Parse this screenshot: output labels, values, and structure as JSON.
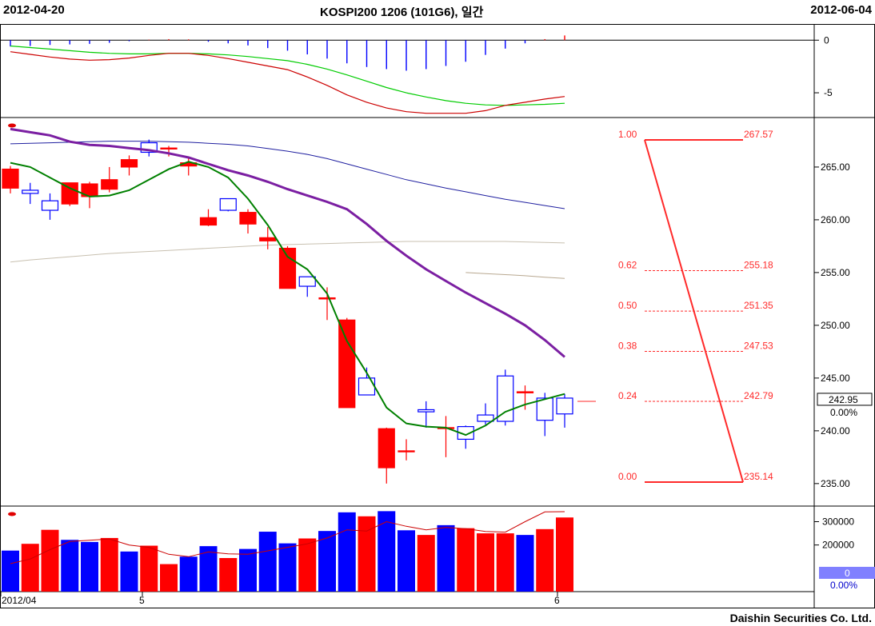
{
  "header": {
    "start_date": "2012-04-20",
    "title": "KOSPI200 1206 (101G6), 일간",
    "end_date": "2012-06-04"
  },
  "footer": {
    "company": "Daishin Securities Co. Ltd."
  },
  "colors": {
    "up": "#ff0000",
    "down": "#0000ff",
    "ma_short": "#008000",
    "ma_mid": "#7b1fa2",
    "ma_long": "#2020a0",
    "ma_vlong": "#c8c0b0",
    "fib": "#ff2a2a",
    "osc_red": "#cc0000",
    "osc_green": "#00cc00",
    "volume_ma": "#cc0000",
    "readout_bg": "#8080ff"
  },
  "chart_data": [
    {
      "type": "candlestick",
      "panel": "price",
      "y_ticks": [
        "235.00",
        "240.00",
        "245.00",
        "250.00",
        "255.00",
        "260.00",
        "265.00"
      ],
      "y_tick_values": [
        235,
        240,
        245,
        250,
        255,
        260,
        265
      ],
      "ylim": [
        232.5,
        269.5
      ],
      "x_month_labels": [
        {
          "label": "2012/04",
          "index": 0
        },
        {
          "label": "5",
          "index": 7
        },
        {
          "label": "6",
          "index": 28
        }
      ],
      "candles": [
        {
          "o": 263.0,
          "h": 265.1,
          "l": 262.5,
          "c": 264.8
        },
        {
          "o": 262.8,
          "h": 263.5,
          "l": 261.5,
          "c": 262.5
        },
        {
          "o": 261.8,
          "h": 262.5,
          "l": 260.0,
          "c": 260.9
        },
        {
          "o": 261.5,
          "h": 263.5,
          "l": 261.3,
          "c": 263.5
        },
        {
          "o": 262.2,
          "h": 263.6,
          "l": 261.1,
          "c": 263.4
        },
        {
          "o": 262.9,
          "h": 265.0,
          "l": 262.6,
          "c": 263.8
        },
        {
          "o": 265.0,
          "h": 266.1,
          "l": 264.2,
          "c": 265.7
        },
        {
          "o": 267.3,
          "h": 267.6,
          "l": 266.0,
          "c": 266.4
        },
        {
          "o": 266.8,
          "h": 267.0,
          "l": 266.0,
          "c": 266.8
        },
        {
          "o": 265.1,
          "h": 266.0,
          "l": 264.2,
          "c": 265.4
        },
        {
          "o": 259.5,
          "h": 261.0,
          "l": 259.4,
          "c": 260.2
        },
        {
          "o": 262.0,
          "h": 262.0,
          "l": 260.8,
          "c": 260.9
        },
        {
          "o": 259.6,
          "h": 261.0,
          "l": 258.7,
          "c": 260.7
        },
        {
          "o": 258.0,
          "h": 259.3,
          "l": 257.2,
          "c": 258.3
        },
        {
          "o": 253.5,
          "h": 257.5,
          "l": 253.5,
          "c": 257.3
        },
        {
          "o": 254.6,
          "h": 254.6,
          "l": 252.7,
          "c": 253.7
        },
        {
          "o": 252.5,
          "h": 253.6,
          "l": 250.5,
          "c": 252.6
        },
        {
          "o": 242.2,
          "h": 250.7,
          "l": 242.2,
          "c": 250.5
        },
        {
          "o": 245.0,
          "h": 246.0,
          "l": 243.5,
          "c": 243.4
        },
        {
          "o": 236.5,
          "h": 240.3,
          "l": 235.0,
          "c": 240.2
        },
        {
          "o": 238.1,
          "h": 239.2,
          "l": 237.2,
          "c": 238.1
        },
        {
          "o": 242.0,
          "h": 242.8,
          "l": 240.3,
          "c": 241.8
        },
        {
          "o": 240.3,
          "h": 241.4,
          "l": 237.5,
          "c": 240.3
        },
        {
          "o": 240.4,
          "h": 240.5,
          "l": 238.3,
          "c": 239.2
        },
        {
          "o": 241.5,
          "h": 242.6,
          "l": 240.6,
          "c": 240.9
        },
        {
          "o": 245.2,
          "h": 245.8,
          "l": 240.5,
          "c": 240.9
        },
        {
          "o": 243.6,
          "h": 244.3,
          "l": 242.0,
          "c": 243.7
        },
        {
          "o": 243.1,
          "h": 243.6,
          "l": 239.5,
          "c": 241.0
        },
        {
          "o": 243.1,
          "h": 243.5,
          "l": 240.3,
          "c": 241.6
        }
      ],
      "ma_short": [
        265.4,
        265.0,
        264.0,
        263.0,
        262.2,
        262.3,
        262.8,
        263.8,
        264.8,
        265.5,
        265.0,
        264.0,
        262.0,
        259.5,
        256.5,
        255.3,
        253.0,
        248.5,
        245.5,
        242.2,
        240.7,
        240.4,
        240.3,
        239.6,
        240.5,
        241.8,
        242.5,
        243.0,
        243.5
      ],
      "ma_mid": [
        268.6,
        268.3,
        268.0,
        267.4,
        267.1,
        267.0,
        266.8,
        266.6,
        266.3,
        265.9,
        265.3,
        264.7,
        264.2,
        263.6,
        262.9,
        262.3,
        261.7,
        261.0,
        259.6,
        258.0,
        256.6,
        255.3,
        254.2,
        253.1,
        252.1,
        251.1,
        250.0,
        248.6,
        247.0
      ],
      "ma_long": [
        267.2,
        267.25,
        267.3,
        267.35,
        267.4,
        267.45,
        267.45,
        267.45,
        267.4,
        267.35,
        267.25,
        267.15,
        267.0,
        266.75,
        266.5,
        266.2,
        265.8,
        265.3,
        264.8,
        264.3,
        263.8,
        263.4,
        263.0,
        262.65,
        262.3,
        261.95,
        261.65,
        261.35,
        261.05
      ],
      "ma_vlong": [
        256.0,
        256.2,
        256.35,
        256.5,
        256.65,
        256.8,
        256.9,
        257.0,
        257.1,
        257.2,
        257.3,
        257.4,
        257.5,
        257.6,
        257.65,
        257.7,
        257.75,
        257.8,
        257.85,
        257.9,
        257.95,
        257.95,
        257.95,
        257.95,
        257.95,
        257.95,
        257.9,
        257.85,
        257.8
      ],
      "ma_extra": {
        "start_index": 23,
        "values": [
          255.0,
          254.9,
          254.8,
          254.7,
          254.55,
          254.45
        ]
      },
      "current_price": "242.95",
      "current_change": "0.00%",
      "fibonacci": [
        {
          "ratio": "1.00",
          "price": "267.57",
          "value": 267.57
        },
        {
          "ratio": "0.62",
          "price": "255.18",
          "value": 255.18
        },
        {
          "ratio": "0.50",
          "price": "251.35",
          "value": 251.35
        },
        {
          "ratio": "0.38",
          "price": "247.53",
          "value": 247.53
        },
        {
          "ratio": "0.24",
          "price": "242.79",
          "value": 242.79
        },
        {
          "ratio": "0.00",
          "price": "235.14",
          "value": 235.14
        }
      ]
    },
    {
      "type": "bar",
      "panel": "oscillator",
      "y_ticks": [
        "0",
        "-5"
      ],
      "y_tick_values": [
        0,
        -5
      ],
      "ylim": [
        -7.2,
        0.4
      ],
      "histogram": [
        -0.6,
        -0.55,
        -0.45,
        -0.4,
        -0.35,
        -0.25,
        -0.1,
        0.05,
        0.1,
        0.08,
        -0.15,
        -0.3,
        -0.5,
        -0.75,
        -1.0,
        -1.35,
        -1.75,
        -2.2,
        -2.55,
        -2.75,
        -2.9,
        -2.75,
        -2.45,
        -2.05,
        -1.4,
        -0.8,
        -0.3,
        0.1,
        0.45
      ],
      "line_red": [
        -1.1,
        -1.35,
        -1.6,
        -1.8,
        -1.9,
        -1.85,
        -1.7,
        -1.45,
        -1.25,
        -1.25,
        -1.45,
        -1.75,
        -2.1,
        -2.45,
        -2.8,
        -3.5,
        -4.3,
        -5.2,
        -5.9,
        -6.45,
        -6.8,
        -6.95,
        -6.95,
        -6.95,
        -6.7,
        -6.2,
        -5.9,
        -5.6,
        -5.35
      ],
      "line_green": [
        -0.55,
        -0.7,
        -0.85,
        -1.0,
        -1.15,
        -1.25,
        -1.3,
        -1.3,
        -1.25,
        -1.25,
        -1.3,
        -1.4,
        -1.55,
        -1.75,
        -1.95,
        -2.3,
        -2.75,
        -3.3,
        -3.9,
        -4.5,
        -5.0,
        -5.4,
        -5.75,
        -6.0,
        -6.15,
        -6.2,
        -6.15,
        -6.1,
        -6.0
      ]
    },
    {
      "type": "bar",
      "panel": "volume",
      "y_ticks": [
        "300000",
        "200000"
      ],
      "y_tick_values": [
        300000,
        200000
      ],
      "ylim": [
        0,
        360000
      ],
      "current_value": "0",
      "current_change": "0.00%",
      "values": [
        176000,
        205000,
        265000,
        222000,
        213000,
        230000,
        172000,
        197000,
        118000,
        150000,
        195000,
        144000,
        183000,
        257000,
        207000,
        228000,
        260000,
        340000,
        323000,
        345000,
        263000,
        243000,
        285000,
        272000,
        250000,
        250000,
        243000,
        268000,
        318000
      ],
      "up": [
        false,
        true,
        true,
        false,
        false,
        true,
        false,
        true,
        true,
        false,
        false,
        true,
        false,
        false,
        false,
        true,
        false,
        false,
        true,
        false,
        false,
        true,
        false,
        true,
        true,
        true,
        false,
        true,
        true
      ],
      "volume_ma": [
        120000,
        140000,
        180000,
        215000,
        220000,
        226000,
        200000,
        190000,
        160000,
        150000,
        170000,
        162000,
        160000,
        175000,
        190000,
        205000,
        230000,
        265000,
        260000,
        300000,
        280000,
        265000,
        275000,
        270000,
        258000,
        255000,
        300000,
        342000,
        343000
      ]
    }
  ]
}
